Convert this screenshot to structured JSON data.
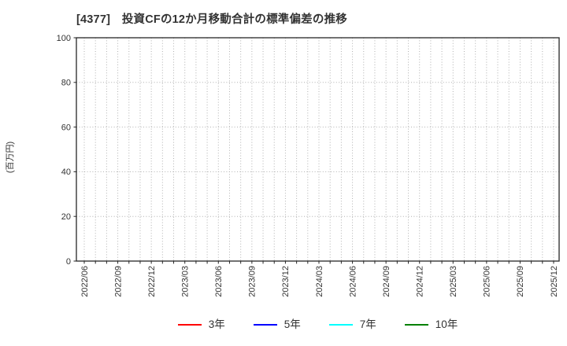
{
  "chart_data": {
    "type": "line",
    "title": "[4377]　投資CFの12か月移動合計の標準偏差の推移",
    "xlabel": "",
    "ylabel": "(百万円)",
    "ylim": [
      0,
      100
    ],
    "yticks": [
      0,
      20,
      40,
      60,
      80,
      100
    ],
    "x_tick_labels": [
      "2022/06",
      "2022/09",
      "2022/12",
      "2023/03",
      "2023/06",
      "2023/09",
      "2023/12",
      "2024/03",
      "2024/06",
      "2024/09",
      "2024/12",
      "2025/03",
      "2025/06",
      "2025/09",
      "2025/12"
    ],
    "x_minor_ticks_per_label": 3,
    "grid": {
      "show": true,
      "style": "dotted",
      "color": "#b0b0b0"
    },
    "legend": {
      "position": "bottom-center"
    },
    "series": [
      {
        "name": "3年",
        "color": "#ff0000",
        "values": []
      },
      {
        "name": "5年",
        "color": "#0000ff",
        "values": []
      },
      {
        "name": "7年",
        "color": "#00ffff",
        "values": []
      },
      {
        "name": "10年",
        "color": "#008000",
        "values": []
      }
    ],
    "note": "plot area is empty - no data points are drawn for any series"
  }
}
